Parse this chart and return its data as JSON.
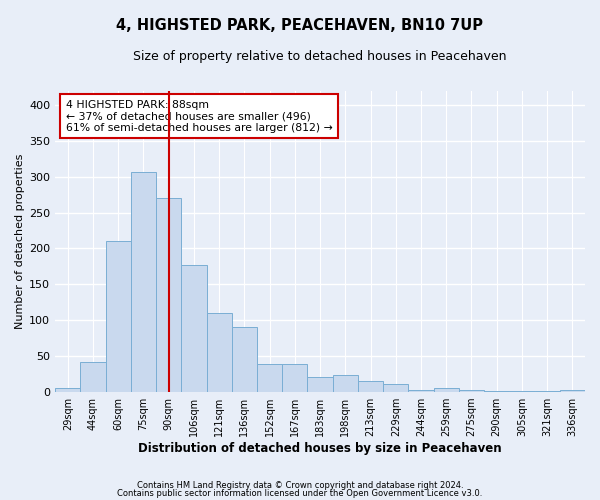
{
  "title": "4, HIGHSTED PARK, PEACEHAVEN, BN10 7UP",
  "subtitle": "Size of property relative to detached houses in Peacehaven",
  "xlabel": "Distribution of detached houses by size in Peacehaven",
  "ylabel": "Number of detached properties",
  "categories": [
    "29sqm",
    "44sqm",
    "60sqm",
    "75sqm",
    "90sqm",
    "106sqm",
    "121sqm",
    "136sqm",
    "152sqm",
    "167sqm",
    "183sqm",
    "198sqm",
    "213sqm",
    "229sqm",
    "244sqm",
    "259sqm",
    "275sqm",
    "290sqm",
    "305sqm",
    "321sqm",
    "336sqm"
  ],
  "values": [
    5,
    42,
    210,
    307,
    270,
    177,
    110,
    90,
    39,
    39,
    21,
    24,
    15,
    11,
    3,
    6,
    3,
    2,
    2,
    1,
    3
  ],
  "bar_color": "#c9d9ee",
  "bar_edge_color": "#7aaed4",
  "vline_x_index": 4,
  "vline_color": "#cc0000",
  "annotation_text": "4 HIGHSTED PARK: 88sqm\n← 37% of detached houses are smaller (496)\n61% of semi-detached houses are larger (812) →",
  "annotation_box_color": "#ffffff",
  "annotation_box_edge_color": "#cc0000",
  "ylim": [
    0,
    420
  ],
  "yticks": [
    0,
    50,
    100,
    150,
    200,
    250,
    300,
    350,
    400
  ],
  "background_color": "#e8eef8",
  "plot_bg_color": "#e8eef8",
  "fig_bg_color": "#e8eef8",
  "grid_color": "#ffffff",
  "footer1": "Contains HM Land Registry data © Crown copyright and database right 2024.",
  "footer2": "Contains public sector information licensed under the Open Government Licence v3.0."
}
